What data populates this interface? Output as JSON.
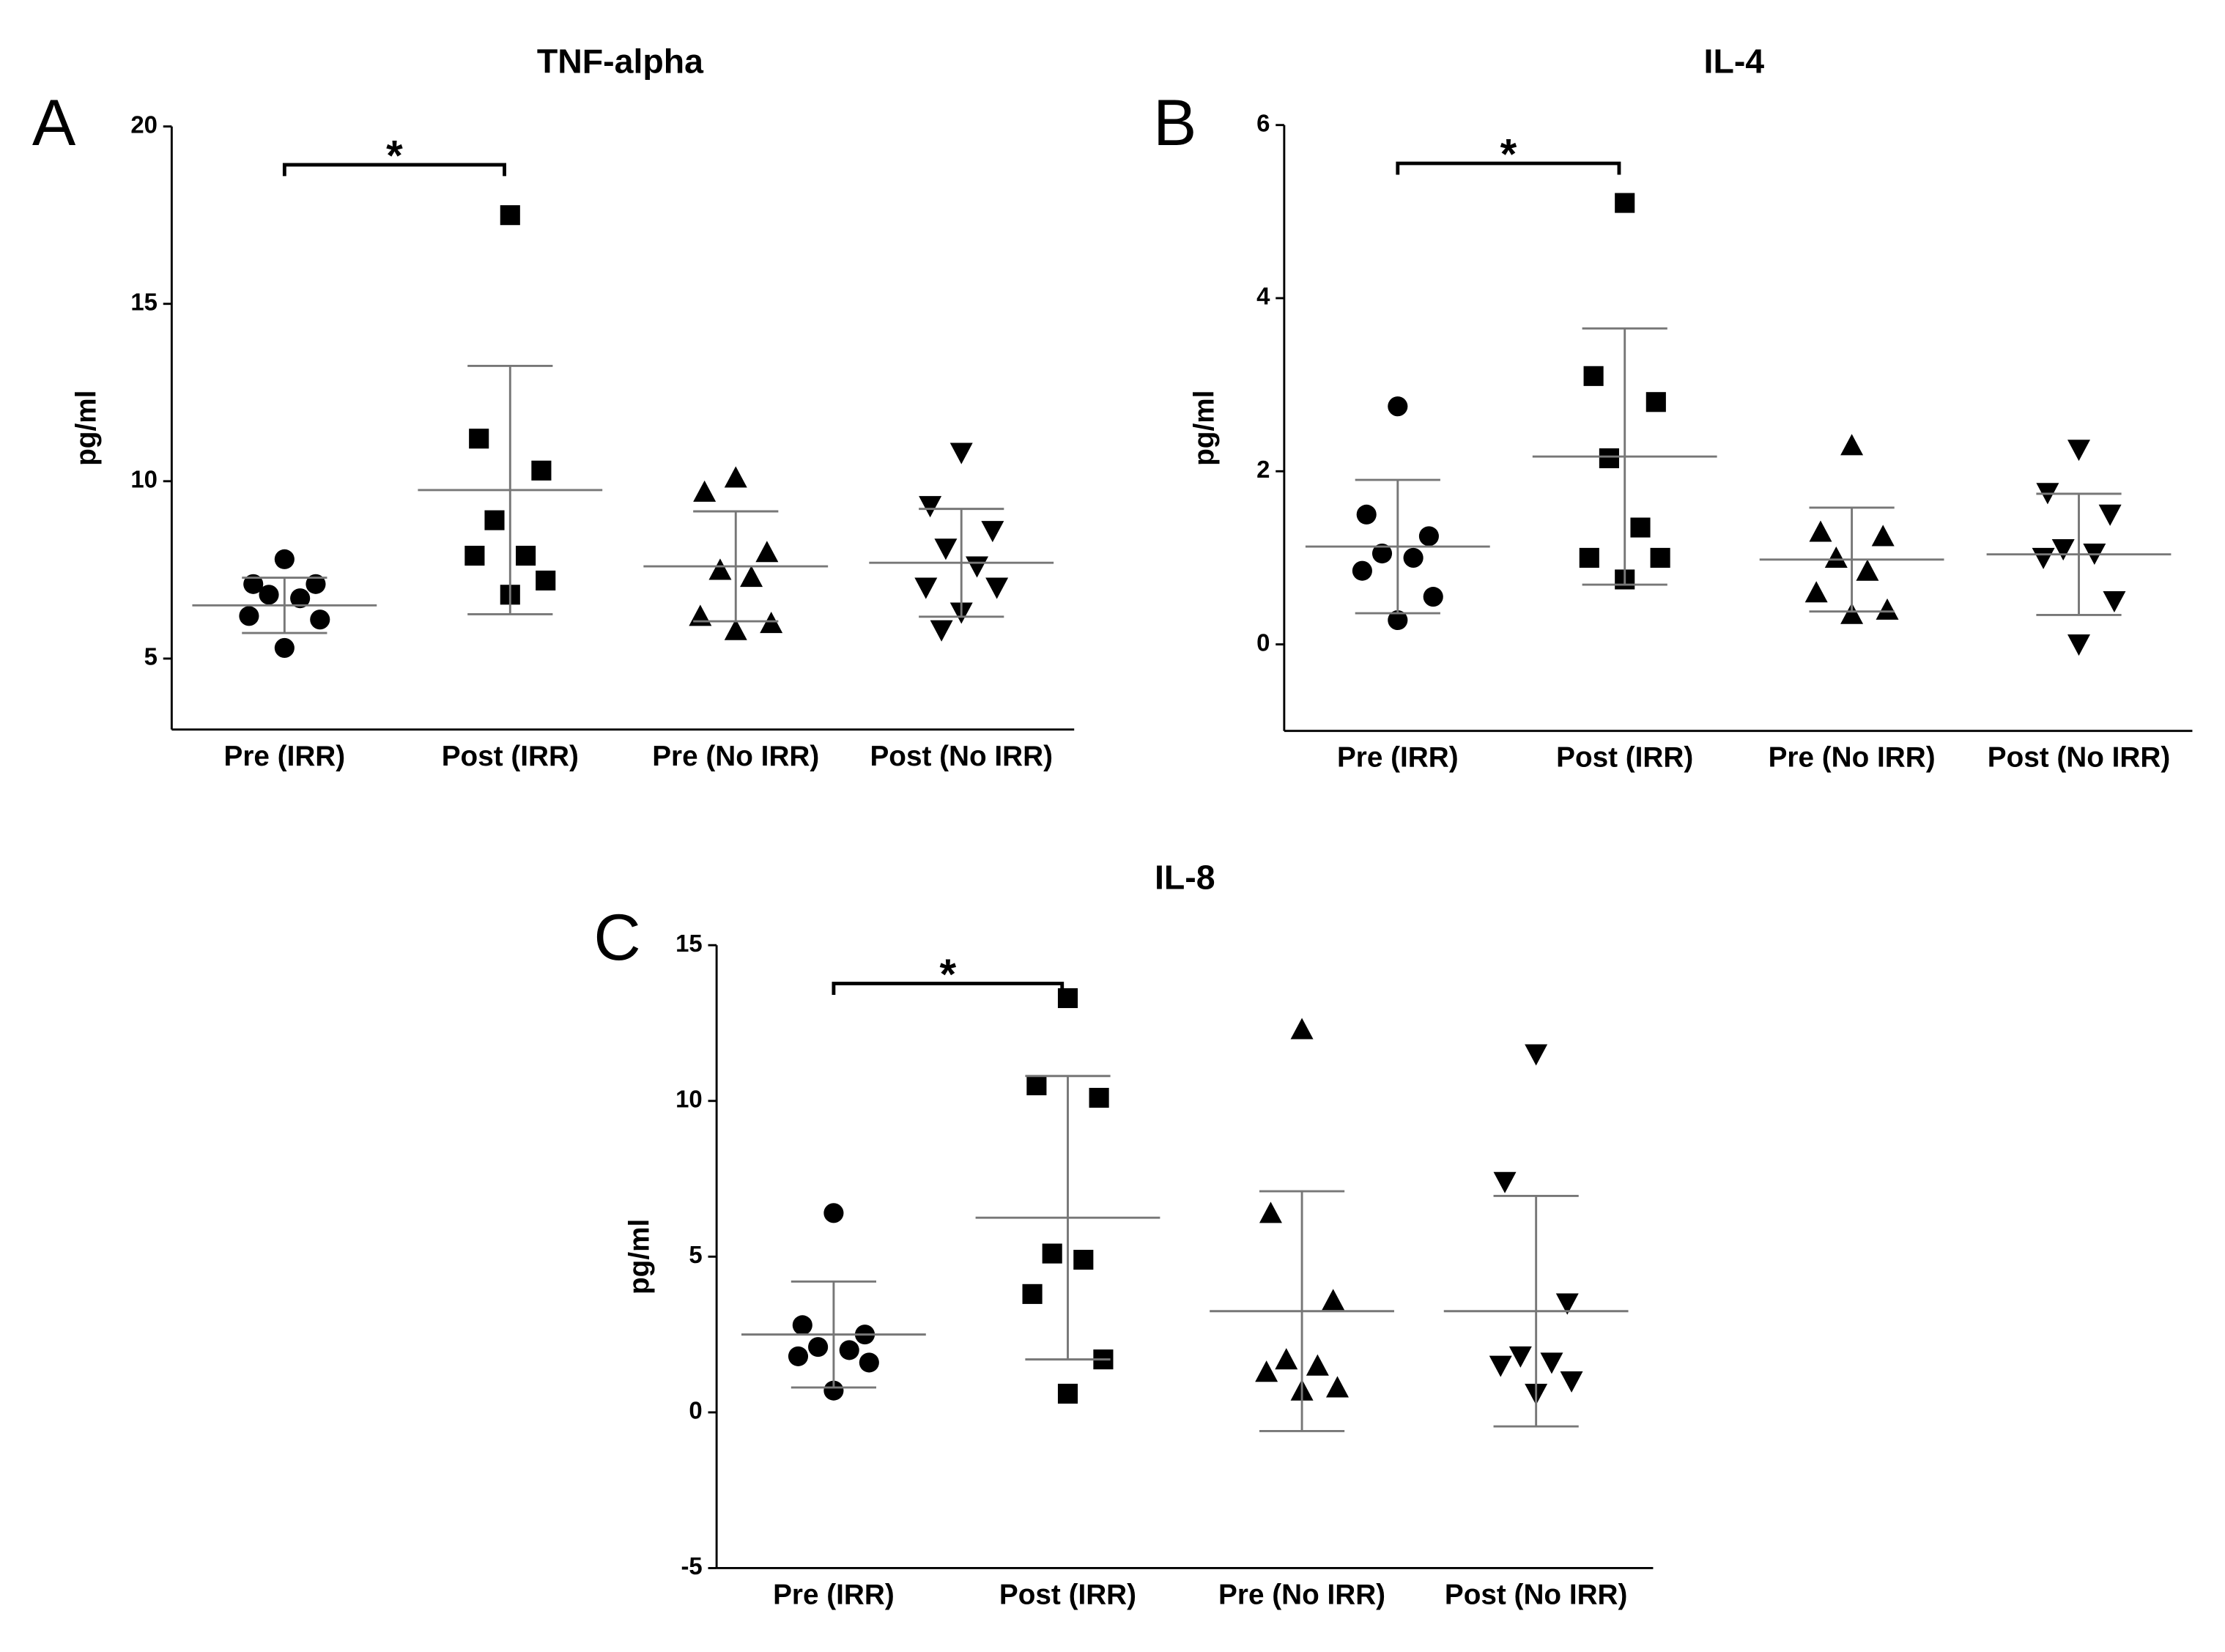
{
  "chart_data": [
    {
      "type": "scatter",
      "panel": "A",
      "title": "TNF-alpha",
      "ylabel": "pg/ml",
      "categories": [
        "Pre (IRR)",
        "Post (IRR)",
        "Pre (No IRR)",
        "Post (No IRR)"
      ],
      "markers": [
        "circle",
        "square",
        "triangle",
        "triangle-down"
      ],
      "color": "#000000",
      "groups": [
        {
          "values": [
            7.8,
            7.1,
            7.1,
            6.8,
            6.7,
            6.2,
            6.1,
            5.3
          ],
          "mean": 6.5,
          "sd": 0.78
        },
        {
          "values": [
            17.5,
            11.2,
            10.3,
            8.9,
            7.9,
            7.9,
            7.2,
            6.8
          ],
          "mean": 9.75,
          "sd": 3.5
        },
        {
          "values": [
            10.1,
            9.7,
            8.0,
            7.5,
            7.3,
            6.2,
            6.0,
            5.8
          ],
          "mean": 7.6,
          "sd": 1.55
        },
        {
          "values": [
            10.8,
            9.3,
            8.6,
            8.1,
            7.6,
            7.0,
            7.0,
            6.3,
            5.8
          ],
          "mean": 7.7,
          "sd": 1.52
        }
      ],
      "ylim": [
        3,
        20
      ],
      "yticks": [
        5,
        10,
        15,
        20
      ],
      "significance": {
        "label": "*",
        "between": [
          0,
          1
        ]
      }
    },
    {
      "type": "scatter",
      "panel": "B",
      "title": "IL-4",
      "ylabel": "pg/ml",
      "categories": [
        "Pre (IRR)",
        "Post (IRR)",
        "Pre (No IRR)",
        "Post (No IRR)"
      ],
      "markers": [
        "circle",
        "square",
        "triangle",
        "triangle-down"
      ],
      "color": "#000000",
      "groups": [
        {
          "values": [
            2.75,
            1.5,
            1.25,
            1.05,
            1.0,
            0.85,
            0.55,
            0.28
          ],
          "mean": 1.13,
          "sd": 0.77
        },
        {
          "values": [
            5.1,
            3.1,
            2.8,
            2.15,
            1.35,
            1.0,
            1.0,
            0.75
          ],
          "mean": 2.17,
          "sd": 1.48
        },
        {
          "values": [
            2.3,
            1.3,
            1.25,
            1.0,
            0.85,
            0.6,
            0.4,
            0.35
          ],
          "mean": 0.98,
          "sd": 0.6
        },
        {
          "values": [
            2.25,
            1.75,
            1.5,
            1.1,
            1.05,
            1.0,
            0.5,
            0.0
          ],
          "mean": 1.04,
          "sd": 0.7
        }
      ],
      "ylim": [
        -1,
        6
      ],
      "yticks": [
        0,
        2,
        4,
        6
      ],
      "significance": {
        "label": "*",
        "between": [
          0,
          1
        ]
      }
    },
    {
      "type": "scatter",
      "panel": "C",
      "title": "IL-8",
      "ylabel": "pg/ml",
      "categories": [
        "Pre (IRR)",
        "Post (IRR)",
        "Pre (No IRR)",
        "Post (No IRR)"
      ],
      "markers": [
        "circle",
        "square",
        "triangle",
        "triangle-down"
      ],
      "color": "#000000",
      "groups": [
        {
          "values": [
            6.4,
            2.8,
            2.5,
            2.1,
            2.0,
            1.8,
            1.6,
            0.7
          ],
          "mean": 2.5,
          "sd": 1.7
        },
        {
          "values": [
            13.3,
            10.5,
            10.1,
            5.1,
            4.9,
            3.8,
            1.7,
            0.6
          ],
          "mean": 6.25,
          "sd": 4.55
        },
        {
          "values": [
            12.3,
            6.4,
            3.6,
            1.7,
            1.5,
            1.3,
            0.8,
            0.7
          ],
          "mean": 3.25,
          "sd": 3.85
        },
        {
          "values": [
            11.5,
            7.4,
            3.5,
            1.8,
            1.6,
            1.5,
            1.0,
            0.6
          ],
          "mean": 3.25,
          "sd": 3.7
        }
      ],
      "ylim": [
        -5,
        15
      ],
      "yticks": [
        -5,
        0,
        5,
        10,
        15
      ],
      "significance": {
        "label": "*",
        "between": [
          0,
          1
        ]
      }
    }
  ]
}
